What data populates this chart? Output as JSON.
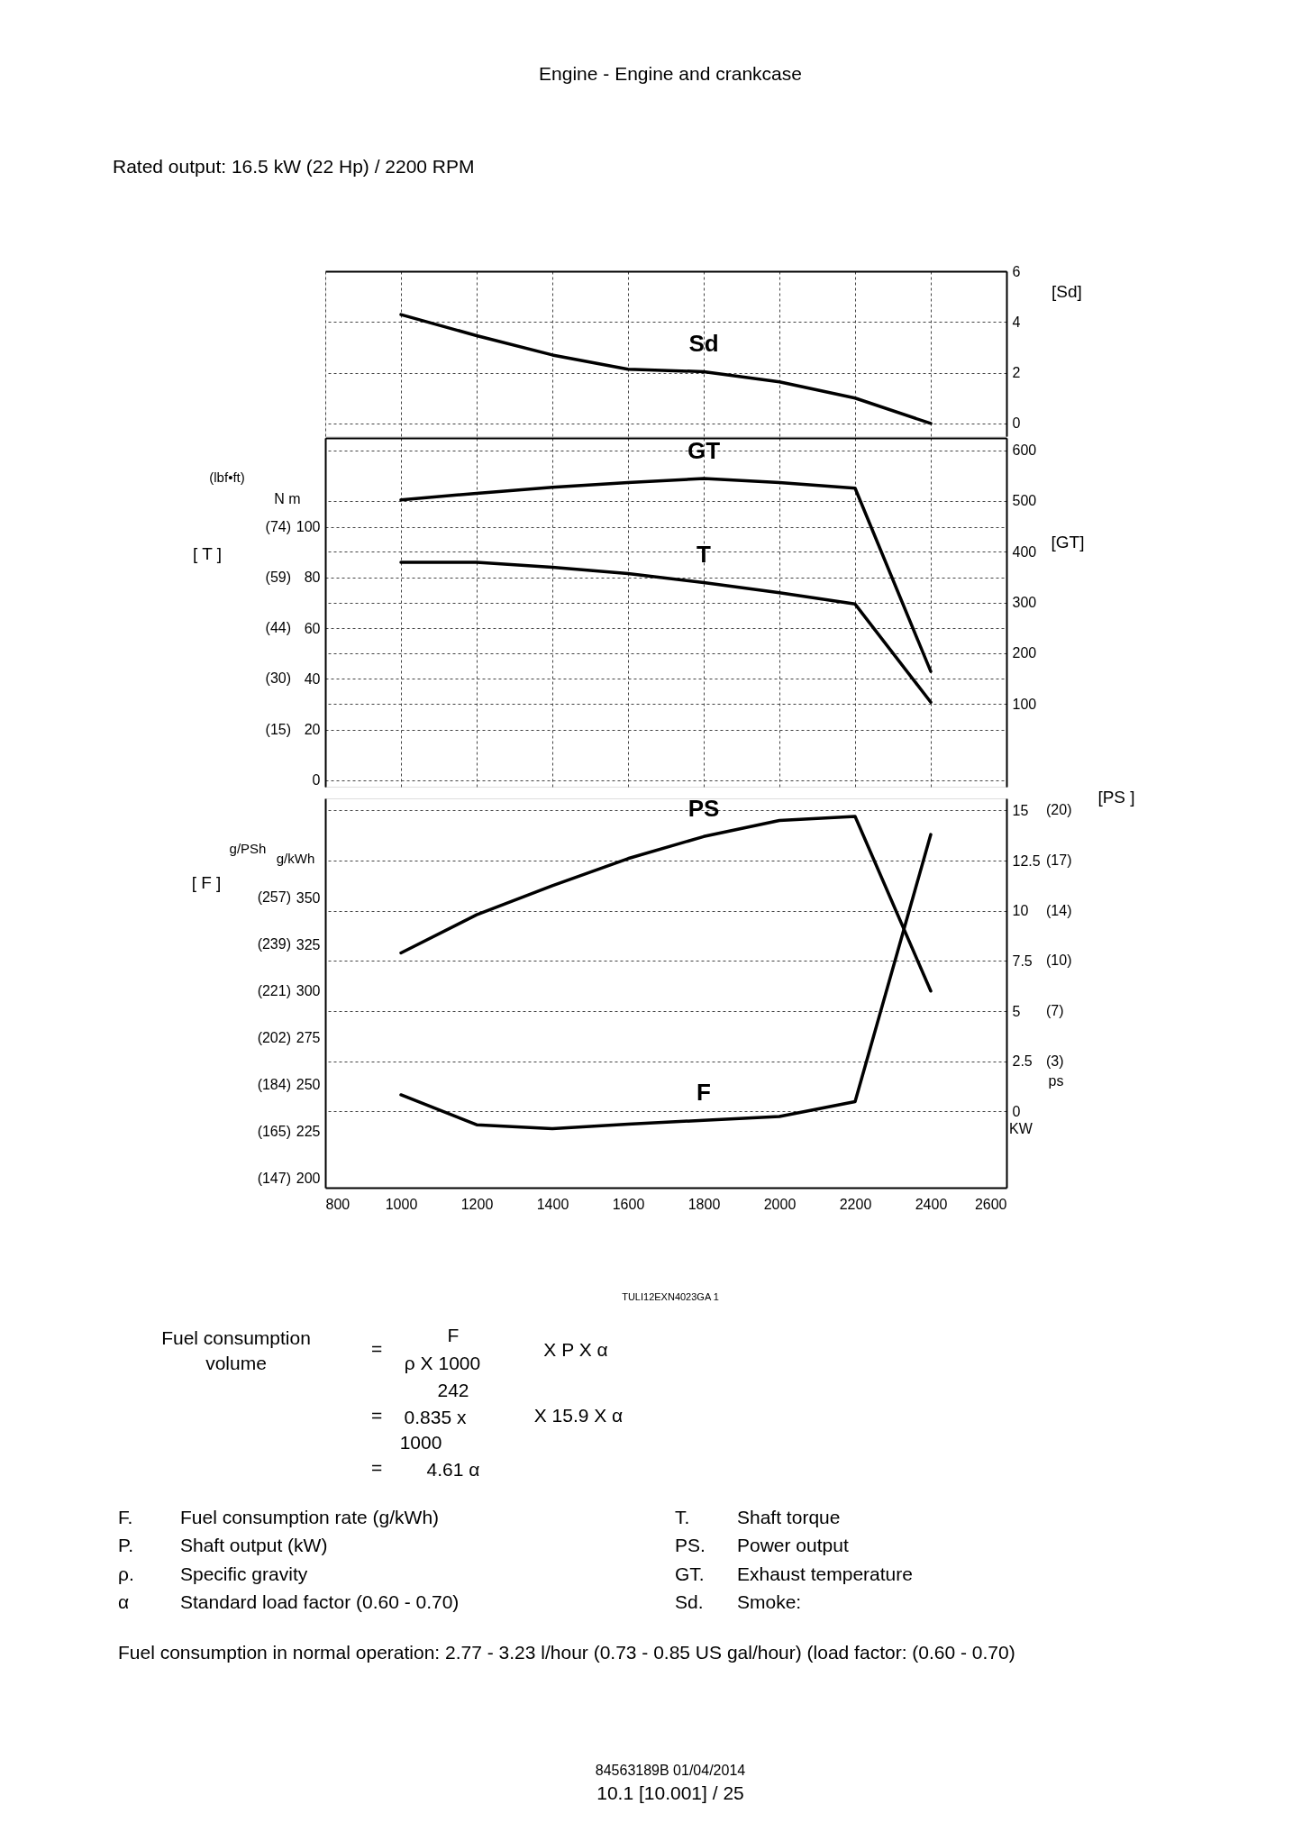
{
  "chart_data": [
    {
      "type": "line",
      "title": "Engine - Engine and crankcase",
      "subtitle": "Rated output: 16.5 kW (22 Hp) / 2200 RPM",
      "x": [
        1000,
        1200,
        1400,
        1600,
        1800,
        2000,
        2200,
        2400
      ],
      "xlim": [
        800,
        2600
      ],
      "xticks": [
        800,
        1000,
        1200,
        1400,
        1600,
        1800,
        2000,
        2200,
        2400,
        2600
      ],
      "tick_labels": "y",
      "ylabel": "[Sd]",
      "ylim": [
        -0.5,
        6
      ],
      "yticks": [
        0,
        2,
        4,
        6
      ],
      "grid": true,
      "series": [
        {
          "name": "Sd",
          "color": "#000000",
          "values": [
            4.29,
            3.46,
            2.7,
            2.14,
            2.04,
            1.64,
            1.0,
            0
          ]
        }
      ]
    },
    {
      "type": "line",
      "x": [
        1000,
        1200,
        1400,
        1600,
        1800,
        2000,
        2200,
        2400
      ],
      "xlim": [
        800,
        2600
      ],
      "xticks": [
        800,
        1000,
        1200,
        1400,
        1600,
        1800,
        2000,
        2200,
        2400,
        2600
      ],
      "tick_labels": "y",
      "ylabel": "[ T ]",
      "ylim": [
        -2.5,
        135
      ],
      "yticks": [
        0,
        20,
        40,
        60,
        80,
        100
      ],
      "y2label": "[GT]",
      "y2lim": [
        -63,
        624
      ],
      "y2ticks": [
        100,
        200,
        300,
        400,
        500,
        600
      ],
      "grid": true,
      "series": [
        {
          "name": "GT",
          "color": "#000000",
          "axis": "y2",
          "values": [
            502,
            515,
            527,
            536,
            544,
            536,
            525,
            164
          ]
        },
        {
          "name": "T",
          "color": "#000000",
          "axis": "y",
          "values": [
            86,
            86,
            84,
            81.5,
            78,
            74,
            69.5,
            30.8
          ]
        }
      ],
      "annotations": [
        "(lbf•ft)",
        "N m",
        "(15)",
        "(30)",
        "(44)",
        "(59)",
        "(74)"
      ]
    },
    {
      "type": "line",
      "x": [
        1000,
        1200,
        1400,
        1600,
        1800,
        2000,
        2200,
        2400
      ],
      "xlim": [
        800,
        2600
      ],
      "xticks": [
        800,
        1000,
        1200,
        1400,
        1600,
        1800,
        2000,
        2200,
        2400,
        2600
      ],
      "ylabel": "[ F ]",
      "ylim": [
        195,
        403
      ],
      "yticks": [
        200,
        225,
        250,
        275,
        300,
        325,
        350
      ],
      "y2label": "[PS  ]",
      "y2lim": [
        -3.8,
        15.6
      ],
      "y2ticks": [
        0,
        2.5,
        5,
        7.5,
        10,
        12.5,
        15
      ],
      "grid": "y2",
      "series": [
        {
          "name": "PS",
          "color": "#000000",
          "axis": "y2",
          "values": [
            7.9,
            9.8,
            11.25,
            12.6,
            13.7,
            14.5,
            14.7,
            6.0
          ]
        },
        {
          "name": "F",
          "color": "#000000",
          "axis": "y",
          "values": [
            244.6,
            228.6,
            226.5,
            229,
            231,
            233,
            241,
            383.7
          ]
        }
      ],
      "annotations": [
        "g/PSh",
        "g/kWh",
        "ps",
        "KW",
        "TULI12EXN4023GA   1",
        "Fuel consumption",
        "volume",
        "=",
        "F",
        "ρ X 1000",
        "X P X α",
        "=",
        "242",
        "0.835  x",
        "1000",
        "X 15.9 X α",
        "=",
        "4.61 α",
        "F.",
        "Fuel consumption rate (g/kWh)",
        "T.",
        "Shaft torque",
        "P.",
        "Shaft output (kW)",
        "PS.",
        "Power output",
        "ρ.",
        "Specific gravity",
        "GT.",
        "Exhaust temperature",
        "α",
        "Standard load factor (0.60 - 0.70)",
        "Sd.",
        "Smoke:",
        "Fuel consumption in normal operation: 2.77 - 3.23 l/hour (0.73 - 0.85 US gal/hour) (load factor: (0.60 - 0.70)",
        "84563189B 01/04/2014",
        "10.1 [10.001] / 25",
        "(147)",
        "(165)",
        "(184)",
        "(202)",
        "(221)",
        "(239)",
        "(257)",
        "(3)",
        "(7)",
        "(10)",
        "(14)",
        "(17)",
        "(20)"
      ]
    }
  ]
}
